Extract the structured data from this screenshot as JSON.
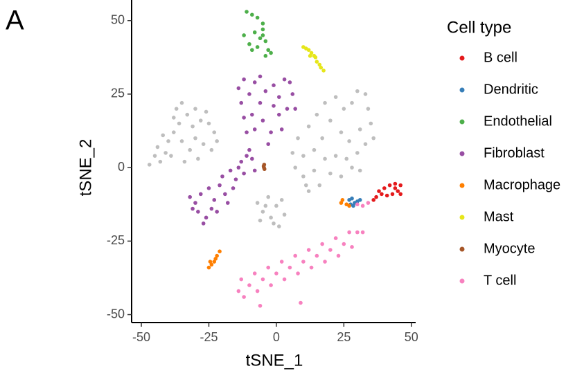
{
  "panel_label": "A",
  "chart_data": {
    "type": "scatter",
    "x_label": "tSNE_1",
    "y_label": "tSNE_2",
    "legend_title": "Cell type",
    "xlim": [
      -53.6,
      51.6
    ],
    "ylim": [
      -52.7,
      57
    ],
    "xticks": [
      -50,
      -25,
      0,
      25,
      50
    ],
    "yticks": [
      -50,
      -25,
      0,
      25,
      50
    ],
    "grid": false,
    "legend": "right",
    "series": [
      {
        "color": "#bebebe",
        "x": [
          -47,
          -45,
          -43,
          -44,
          -41,
          -40,
          -38,
          -36,
          -37,
          -35,
          -33,
          -31,
          -30,
          -28,
          -26,
          -25,
          -23,
          -22,
          -24,
          -27,
          -32,
          -35,
          -39,
          -34,
          -29,
          -42,
          -38,
          -30,
          8,
          12,
          15,
          18,
          22,
          25,
          28,
          30,
          33,
          34,
          35,
          31,
          27,
          24,
          20,
          17,
          14,
          10,
          7,
          10,
          14,
          18,
          22,
          26,
          30,
          33,
          36,
          16,
          12,
          20,
          24,
          28,
          31,
          6,
          11,
          -7,
          -5,
          -3,
          -2,
          0,
          2,
          3,
          -1,
          -6,
          1,
          -4
        ],
        "y": [
          1,
          4,
          2,
          7,
          5,
          9,
          12,
          15,
          20,
          22,
          18,
          14,
          10,
          16,
          19,
          15,
          12,
          9,
          6,
          8,
          6,
          9,
          4,
          2,
          3,
          11,
          17,
          20,
          10,
          14,
          18,
          22,
          24,
          20,
          22,
          26,
          25,
          20,
          15,
          13,
          9,
          12,
          16,
          10,
          6,
          4,
          0,
          -3,
          -1,
          3,
          4,
          3,
          5,
          8,
          10,
          -6,
          -8,
          -2,
          -3,
          0,
          -1,
          5,
          -6,
          -12,
          -15,
          -10,
          -17,
          -13,
          -11,
          -16,
          -19,
          -18,
          -20,
          -13
        ]
      },
      {
        "name": "B cell",
        "color": "#e41a1c",
        "x": [
          38,
          40,
          42,
          44,
          46,
          45,
          43,
          41,
          39,
          37,
          46,
          44,
          36
        ],
        "y": [
          -8,
          -7,
          -6,
          -5.5,
          -6,
          -8,
          -9,
          -9.5,
          -9,
          -10,
          -9,
          -7,
          -11
        ]
      },
      {
        "name": "Dendritic",
        "color": "#377eb8",
        "x": [
          27,
          28,
          29,
          30,
          28.5,
          31,
          27.5
        ],
        "y": [
          -11,
          -10.5,
          -12,
          -11.5,
          -13,
          -11,
          -12.5
        ]
      },
      {
        "name": "Endothelial",
        "color": "#4daf4a",
        "x": [
          -11,
          -9,
          -7,
          -5,
          -5,
          -5,
          -4,
          -6,
          -8,
          -7,
          -9,
          -10,
          -12,
          -3,
          -2,
          -4
        ],
        "y": [
          53,
          52,
          51,
          49,
          47,
          45,
          43,
          44,
          46,
          41,
          40,
          42,
          45,
          40,
          39,
          38
        ]
      },
      {
        "name": "Fibroblast",
        "color": "#984ea3",
        "x": [
          -12,
          -8,
          -6,
          -10,
          -13,
          -12,
          -9,
          -6,
          -4,
          -1,
          1,
          3,
          5,
          6,
          4,
          1,
          2,
          -2,
          -3,
          -5,
          -11,
          -8,
          7,
          -1,
          -14,
          -32,
          -30,
          -28,
          -29,
          -26,
          -24,
          -23,
          -25,
          -21,
          -19,
          -20,
          -17,
          -15,
          -13,
          -11,
          -9,
          -8,
          -12,
          -16,
          -18,
          -22,
          -27,
          -31,
          -14,
          -10
        ],
        "y": [
          30,
          29,
          31,
          25,
          22,
          17,
          18,
          22,
          26,
          28,
          24,
          30,
          29,
          25,
          20,
          18,
          13,
          12,
          8,
          16,
          12,
          13,
          20,
          21,
          27,
          -10,
          -12,
          -9,
          -15,
          -17,
          -14,
          -11,
          -7,
          -6,
          -9,
          -3,
          -1,
          -4,
          2,
          4,
          3,
          -1,
          -2,
          -7,
          -12,
          -15,
          -19,
          -14,
          0,
          6
        ]
      },
      {
        "name": "Macrophage",
        "color": "#ff7f00",
        "x": [
          -25,
          -24,
          -23,
          -22,
          -21,
          -24.5,
          -22.5,
          24,
          24.5,
          26,
          27
        ],
        "y": [
          -34,
          -33,
          -32,
          -30,
          -28.5,
          -32,
          -31,
          -12,
          -11,
          -12.5,
          -13
        ]
      },
      {
        "name": "Mast",
        "color": "#e6e61a",
        "x": [
          10,
          11,
          12,
          13,
          14,
          15,
          16,
          16.5,
          17.5,
          12.5,
          14.5
        ],
        "y": [
          41,
          40.5,
          40,
          39,
          38,
          36,
          35,
          34,
          33,
          38,
          37.5
        ]
      },
      {
        "name": "Myocyte",
        "color": "#a65628",
        "x": [
          -4.5,
          -4.6,
          -4.4,
          -4.7
        ],
        "y": [
          1,
          0,
          -0.5,
          0.5
        ]
      },
      {
        "name": "T cell",
        "color": "#f781bf",
        "x": [
          -14,
          -13,
          -12,
          -10,
          -8,
          -7,
          -5,
          -3,
          -2,
          0,
          2,
          3,
          5,
          7,
          8,
          10,
          12,
          13,
          15,
          17,
          18,
          20,
          22,
          23,
          25,
          27,
          28,
          30,
          32,
          9,
          -6,
          32,
          34,
          30
        ],
        "y": [
          -42,
          -38,
          -44,
          -40,
          -36,
          -42,
          -38,
          -34,
          -40,
          -36,
          -32,
          -38,
          -34,
          -30,
          -36,
          -32,
          -28,
          -34,
          -30,
          -26,
          -32,
          -28,
          -24,
          -30,
          -26,
          -22,
          -27,
          -22,
          -22,
          -46,
          -47,
          -13,
          -12,
          -12.5
        ]
      }
    ]
  }
}
